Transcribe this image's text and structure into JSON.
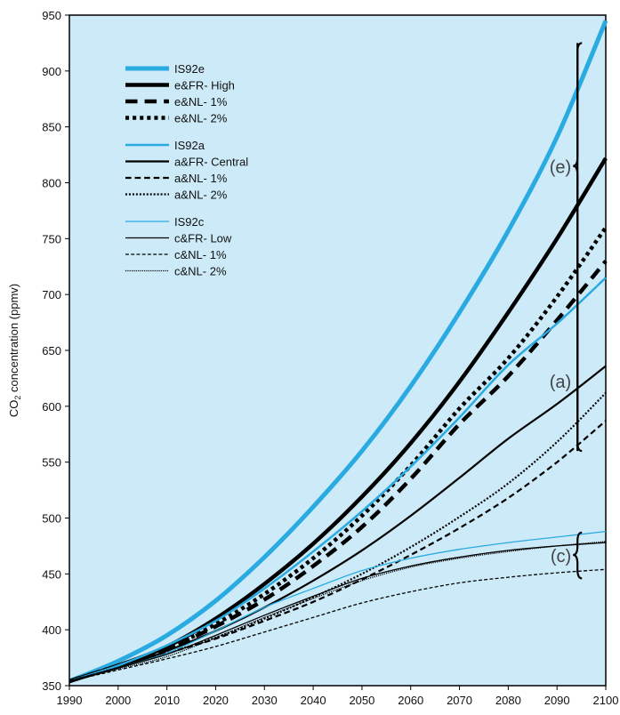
{
  "chart_data": {
    "type": "line",
    "title": "",
    "xlabel": "",
    "ylabel": "CO2 concentration (ppmv)",
    "ylabel_parts": [
      "CO",
      "2",
      " concentration  (ppmv)"
    ],
    "xlim": [
      1990,
      2100
    ],
    "ylim": [
      350,
      950
    ],
    "x_ticks": [
      1990,
      2000,
      2010,
      2020,
      2030,
      2040,
      2050,
      2060,
      2070,
      2080,
      2090,
      2100
    ],
    "y_ticks": [
      350,
      400,
      450,
      500,
      550,
      600,
      650,
      700,
      750,
      800,
      850,
      900,
      950
    ],
    "grid": false,
    "legend_position": "top-left",
    "colors": {
      "background": "#cdeaf8",
      "ipcc_blue": "#29abe2",
      "black": "#000000"
    },
    "x": [
      1990,
      2000,
      2010,
      2020,
      2030,
      2040,
      2050,
      2060,
      2070,
      2080,
      2090,
      2100
    ],
    "series": [
      {
        "name": "IS92e",
        "color": "#29abe2",
        "width": 5,
        "dash": "solid",
        "values": [
          354,
          372,
          395,
          426,
          465,
          510,
          560,
          618,
          684,
          757,
          841,
          945
        ]
      },
      {
        "name": "e&FR- High",
        "color": "#000000",
        "width": 4.5,
        "dash": "solid",
        "values": [
          354,
          368,
          385,
          410,
          441,
          477,
          519,
          567,
          622,
          684,
          750,
          822
        ]
      },
      {
        "name": "e&NL- 1%",
        "color": "#000000",
        "width": 4.5,
        "dash": "dashed",
        "values": [
          354,
          368,
          383,
          403,
          427,
          457,
          492,
          535,
          584,
          627,
          677,
          730
        ]
      },
      {
        "name": "e&NL- 2%",
        "color": "#000000",
        "width": 4.5,
        "dash": "dotted",
        "values": [
          354,
          368,
          383,
          405,
          432,
          464,
          502,
          547,
          598,
          643,
          698,
          760
        ]
      },
      {
        "name": "IS92a",
        "color": "#29abe2",
        "width": 2.5,
        "dash": "solid",
        "values": [
          354,
          368,
          386,
          408,
          437,
          470,
          506,
          546,
          590,
          637,
          674,
          715
        ]
      },
      {
        "name": "a&FR- Central",
        "color": "#000000",
        "width": 2.2,
        "dash": "solid",
        "values": [
          354,
          366,
          381,
          399,
          420,
          444,
          471,
          502,
          536,
          571,
          602,
          636
        ]
      },
      {
        "name": "a&NL- 1%",
        "color": "#000000",
        "width": 2.2,
        "dash": "dashed",
        "values": [
          354,
          366,
          379,
          392,
          408,
          425,
          445,
          467,
          491,
          518,
          550,
          587
        ]
      },
      {
        "name": "a&NL- 2%",
        "color": "#000000",
        "width": 2.2,
        "dash": "dotted",
        "values": [
          354,
          366,
          379,
          393,
          410,
          429,
          450,
          474,
          501,
          531,
          568,
          612
        ]
      },
      {
        "name": "IS92c",
        "color": "#29abe2",
        "width": 1.3,
        "dash": "solid",
        "values": [
          354,
          366,
          379,
          399,
          420,
          437,
          453,
          464,
          472,
          478,
          483,
          488
        ]
      },
      {
        "name": "c&FR- Low",
        "color": "#000000",
        "width": 1.3,
        "dash": "solid",
        "values": [
          354,
          366,
          378,
          395,
          413,
          430,
          446,
          457,
          465,
          471,
          475,
          478
        ]
      },
      {
        "name": "c&NL- 1%",
        "color": "#000000",
        "width": 1.3,
        "dash": "dashed",
        "values": [
          354,
          364,
          374,
          385,
          398,
          411,
          424,
          434,
          442,
          447,
          451,
          454
        ]
      },
      {
        "name": "c&NL- 2%",
        "color": "#000000",
        "width": 1.3,
        "dash": "dotted",
        "values": [
          354,
          365,
          376,
          393,
          411,
          428,
          444,
          456,
          464,
          470,
          475,
          479
        ]
      }
    ],
    "legend_groups": [
      [
        0,
        1,
        2,
        3
      ],
      [
        4,
        5,
        6,
        7
      ],
      [
        8,
        9,
        10,
        11
      ]
    ],
    "annotations": [
      {
        "text": "(e)",
        "y_range": [
          560,
          925
        ],
        "x_year": 2094
      },
      {
        "text": "(a)",
        "y_range": [
          560,
          925
        ],
        "x_year": 2094,
        "label_y": 623
      },
      {
        "text": "(c)",
        "y_range": [
          446,
          487
        ],
        "x_year": 2094
      }
    ]
  }
}
